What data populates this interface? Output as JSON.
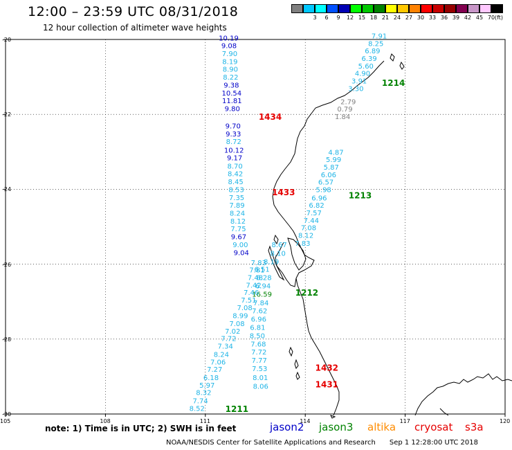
{
  "header": {
    "title": "12:00 – 23:59 UTC 08/31/2018",
    "subtitle": "12 hour collection of altimeter wave heights"
  },
  "colorbar": {
    "unit": "(ft)",
    "swatches": [
      {
        "label": "",
        "color": "#808080"
      },
      {
        "label": "3",
        "color": "#00c8ff"
      },
      {
        "label": "6",
        "color": "#00ffff"
      },
      {
        "label": "9",
        "color": "#0050ff"
      },
      {
        "label": "12",
        "color": "#0000b4"
      },
      {
        "label": "15",
        "color": "#00ff00"
      },
      {
        "label": "18",
        "color": "#00c800"
      },
      {
        "label": "21",
        "color": "#008200"
      },
      {
        "label": "24",
        "color": "#ffff00"
      },
      {
        "label": "27",
        "color": "#ffc800"
      },
      {
        "label": "30",
        "color": "#ff8200"
      },
      {
        "label": "33",
        "color": "#ff0000"
      },
      {
        "label": "36",
        "color": "#c80000"
      },
      {
        "label": "39",
        "color": "#960000"
      },
      {
        "label": "42",
        "color": "#820050"
      },
      {
        "label": "45",
        "color": "#c896c8"
      },
      {
        "label": "70",
        "color": "#ffc8ff"
      },
      {
        "label": "",
        "color": "#000000"
      }
    ]
  },
  "axes": {
    "lat_labels": [
      "-20",
      "-22",
      "-24",
      "-26",
      "-28",
      "-30"
    ],
    "lon_labels": [
      "105",
      "108",
      "111",
      "114",
      "117",
      "120"
    ],
    "lat_range": [
      -30,
      -20
    ],
    "lon_range": [
      105,
      120
    ]
  },
  "colors": {
    "light_blue": "#1eb4e6",
    "dark_blue": "#0000c8",
    "gray": "#808080",
    "green": "#008200",
    "red": "#e60000",
    "orange": "#ff8c00",
    "yellow_green": "#96c800"
  },
  "tracks": [
    {
      "id": "1434",
      "label_color": "#e60000",
      "label_lon": 112.6,
      "label_lat": -22.05,
      "points": [
        {
          "lon": 111.7,
          "lat": -19.95,
          "v": "10.19",
          "c": "#0000c8"
        },
        {
          "lon": 111.71,
          "lat": -20.16,
          "v": "9.08",
          "c": "#0000c8"
        },
        {
          "lon": 111.73,
          "lat": -20.37,
          "v": "7.90",
          "c": "#1eb4e6"
        },
        {
          "lon": 111.74,
          "lat": -20.58,
          "v": "8.19",
          "c": "#1eb4e6"
        },
        {
          "lon": 111.75,
          "lat": -20.79,
          "v": "8.90",
          "c": "#1eb4e6"
        },
        {
          "lon": 111.76,
          "lat": -21.0,
          "v": "8.22",
          "c": "#1eb4e6"
        },
        {
          "lon": 111.78,
          "lat": -21.21,
          "v": "9.38",
          "c": "#0000c8"
        },
        {
          "lon": 111.79,
          "lat": -21.42,
          "v": "10.54",
          "c": "#0000c8"
        },
        {
          "lon": 111.8,
          "lat": -21.63,
          "v": "11.81",
          "c": "#0000c8"
        },
        {
          "lon": 111.81,
          "lat": -21.84,
          "v": "9.80",
          "c": "#0000c8"
        },
        {
          "lon": 111.83,
          "lat": -22.3,
          "v": "9.70",
          "c": "#0000c8"
        },
        {
          "lon": 111.84,
          "lat": -22.51,
          "v": "9.33",
          "c": "#0000c8"
        },
        {
          "lon": 111.85,
          "lat": -22.72,
          "v": "8.72",
          "c": "#1eb4e6"
        },
        {
          "lon": 111.86,
          "lat": -22.95,
          "v": "10.12",
          "c": "#0000c8"
        },
        {
          "lon": 111.88,
          "lat": -23.15,
          "v": "9.17",
          "c": "#0000c8"
        },
        {
          "lon": 111.89,
          "lat": -23.37,
          "v": "8.70",
          "c": "#1eb4e6"
        },
        {
          "lon": 111.9,
          "lat": -23.58,
          "v": "8.42",
          "c": "#1eb4e6"
        },
        {
          "lon": 111.91,
          "lat": -23.79,
          "v": "8.45",
          "c": "#1eb4e6"
        },
        {
          "lon": 111.93,
          "lat": -24.0,
          "v": "8.53",
          "c": "#1eb4e6"
        },
        {
          "lon": 111.94,
          "lat": -24.21,
          "v": "7.35",
          "c": "#1eb4e6"
        },
        {
          "lon": 111.95,
          "lat": -24.42,
          "v": "7.89",
          "c": "#1eb4e6"
        },
        {
          "lon": 111.96,
          "lat": -24.63,
          "v": "8.24",
          "c": "#1eb4e6"
        },
        {
          "lon": 111.98,
          "lat": -24.84,
          "v": "8.12",
          "c": "#1eb4e6"
        },
        {
          "lon": 111.99,
          "lat": -25.05,
          "v": "7.75",
          "c": "#1eb4e6"
        },
        {
          "lon": 112.0,
          "lat": -25.26,
          "v": "9.67",
          "c": "#0000c8"
        },
        {
          "lon": 112.05,
          "lat": -25.47,
          "v": "9.00",
          "c": "#1eb4e6"
        },
        {
          "lon": 112.08,
          "lat": -25.68,
          "v": "9.04",
          "c": "#0000c8"
        }
      ]
    },
    {
      "id": "1433",
      "label_color": "#e60000",
      "label_lon": 113.0,
      "label_lat": -24.07,
      "points": [
        {
          "lon": 113.22,
          "lat": -25.47,
          "v": "8.67",
          "c": "#1eb4e6"
        },
        {
          "lon": 113.18,
          "lat": -25.7,
          "v": "8.10",
          "c": "#1eb4e6"
        },
        {
          "lon": 112.98,
          "lat": -25.92,
          "v": "8.19",
          "c": "#1eb4e6"
        },
        {
          "lon": 112.7,
          "lat": -26.13,
          "v": "6.51",
          "c": "#1eb4e6"
        },
        {
          "lon": 112.76,
          "lat": -26.35,
          "v": "6.28",
          "c": "#1eb4e6"
        },
        {
          "lon": 112.73,
          "lat": -26.57,
          "v": "6.94",
          "c": "#1eb4e6"
        },
        {
          "lon": 112.7,
          "lat": -26.79,
          "v": "16.59",
          "c": "#008200"
        },
        {
          "lon": 112.67,
          "lat": -27.02,
          "v": "7.84",
          "c": "#1eb4e6"
        },
        {
          "lon": 112.63,
          "lat": -27.24,
          "v": "7.62",
          "c": "#1eb4e6"
        },
        {
          "lon": 112.6,
          "lat": -27.46,
          "v": "6.96",
          "c": "#1eb4e6"
        },
        {
          "lon": 112.57,
          "lat": -27.68,
          "v": "6.81",
          "c": "#1eb4e6"
        },
        {
          "lon": 112.56,
          "lat": -27.9,
          "v": "8.50",
          "c": "#1eb4e6"
        },
        {
          "lon": 112.59,
          "lat": -28.12,
          "v": "7.68",
          "c": "#1eb4e6"
        },
        {
          "lon": 112.61,
          "lat": -28.34,
          "v": "7.72",
          "c": "#1eb4e6"
        },
        {
          "lon": 112.62,
          "lat": -28.56,
          "v": "7.77",
          "c": "#1eb4e6"
        },
        {
          "lon": 112.63,
          "lat": -28.78,
          "v": "7.53",
          "c": "#1eb4e6"
        },
        {
          "lon": 112.65,
          "lat": -29.02,
          "v": "8.01",
          "c": "#1eb4e6"
        },
        {
          "lon": 112.66,
          "lat": -29.25,
          "v": "8.06",
          "c": "#1eb4e6"
        }
      ]
    },
    {
      "id": "1432",
      "label_color": "#e60000",
      "label_lon": 114.3,
      "label_lat": -28.75,
      "points": []
    },
    {
      "id": "1431",
      "label_color": "#e60000",
      "label_lon": 114.3,
      "label_lat": -29.2,
      "points": []
    },
    {
      "id": "1214",
      "label_color": "#008200",
      "label_lon": 116.3,
      "label_lat": -21.15,
      "points": [
        {
          "lon": 116.22,
          "lat": -19.9,
          "v": "7.91",
          "c": "#1eb4e6"
        },
        {
          "lon": 116.12,
          "lat": -20.1,
          "v": "8.25",
          "c": "#1eb4e6"
        },
        {
          "lon": 116.02,
          "lat": -20.3,
          "v": "6.89",
          "c": "#1eb4e6"
        },
        {
          "lon": 115.92,
          "lat": -20.5,
          "v": "6.39",
          "c": "#1eb4e6"
        },
        {
          "lon": 115.82,
          "lat": -20.7,
          "v": "5.60",
          "c": "#1eb4e6"
        },
        {
          "lon": 115.72,
          "lat": -20.9,
          "v": "4.90",
          "c": "#1eb4e6"
        },
        {
          "lon": 115.62,
          "lat": -21.1,
          "v": "3.91",
          "c": "#1eb4e6"
        },
        {
          "lon": 115.52,
          "lat": -21.3,
          "v": "3.30",
          "c": "#1eb4e6"
        },
        {
          "lon": 115.29,
          "lat": -21.65,
          "v": "2.79",
          "c": "#808080"
        },
        {
          "lon": 115.19,
          "lat": -21.85,
          "v": "0.79",
          "c": "#808080"
        },
        {
          "lon": 115.12,
          "lat": -22.05,
          "v": "1.84",
          "c": "#808080"
        }
      ]
    },
    {
      "id": "1213",
      "label_color": "#008200",
      "label_lon": 115.3,
      "label_lat": -24.15,
      "points": [
        {
          "lon": 114.92,
          "lat": -23.0,
          "v": "4.87",
          "c": "#1eb4e6"
        },
        {
          "lon": 114.85,
          "lat": -23.2,
          "v": "5.99",
          "c": "#1eb4e6"
        },
        {
          "lon": 114.78,
          "lat": -23.4,
          "v": "5.87",
          "c": "#1eb4e6"
        },
        {
          "lon": 114.7,
          "lat": -23.6,
          "v": "6.06",
          "c": "#1eb4e6"
        },
        {
          "lon": 114.62,
          "lat": -23.8,
          "v": "6.57",
          "c": "#1eb4e6"
        },
        {
          "lon": 114.55,
          "lat": -24.0,
          "v": "5.98",
          "c": "#1eb4e6"
        },
        {
          "lon": 114.42,
          "lat": -24.22,
          "v": "6.96",
          "c": "#1eb4e6"
        },
        {
          "lon": 114.34,
          "lat": -24.42,
          "v": "6.82",
          "c": "#1eb4e6"
        },
        {
          "lon": 114.26,
          "lat": -24.62,
          "v": "7.57",
          "c": "#1eb4e6"
        },
        {
          "lon": 114.18,
          "lat": -24.82,
          "v": "7.44",
          "c": "#1eb4e6"
        },
        {
          "lon": 114.1,
          "lat": -25.02,
          "v": "7.08",
          "c": "#1eb4e6"
        },
        {
          "lon": 114.02,
          "lat": -25.22,
          "v": "8.12",
          "c": "#1eb4e6"
        },
        {
          "lon": 113.92,
          "lat": -25.43,
          "v": "7.83",
          "c": "#1eb4e6"
        }
      ]
    },
    {
      "id": "1212",
      "label_color": "#008200",
      "label_lon": 113.7,
      "label_lat": -26.75,
      "points": [
        {
          "lon": 112.6,
          "lat": -25.95,
          "v": "7.83",
          "c": "#1eb4e6"
        },
        {
          "lon": 112.55,
          "lat": -26.15,
          "v": "7.81",
          "c": "#1eb4e6"
        },
        {
          "lon": 112.5,
          "lat": -26.35,
          "v": "7.48",
          "c": "#1eb4e6"
        },
        {
          "lon": 112.45,
          "lat": -26.55,
          "v": "7.42",
          "c": "#1eb4e6"
        },
        {
          "lon": 112.38,
          "lat": -26.75,
          "v": "7.46",
          "c": "#1eb4e6"
        },
        {
          "lon": 112.3,
          "lat": -26.95,
          "v": "7.51",
          "c": "#1eb4e6"
        },
        {
          "lon": 112.18,
          "lat": -27.15,
          "v": "7.08",
          "c": "#1eb4e6"
        },
        {
          "lon": 112.05,
          "lat": -27.37,
          "v": "8.99",
          "c": "#1eb4e6"
        },
        {
          "lon": 111.95,
          "lat": -27.58,
          "v": "7.08",
          "c": "#1eb4e6"
        },
        {
          "lon": 111.82,
          "lat": -27.78,
          "v": "7.02",
          "c": "#1eb4e6"
        },
        {
          "lon": 111.7,
          "lat": -27.98,
          "v": "7.72",
          "c": "#1eb4e6"
        },
        {
          "lon": 111.6,
          "lat": -28.18,
          "v": "7.34",
          "c": "#1eb4e6"
        },
        {
          "lon": 111.48,
          "lat": -28.4,
          "v": "8.24",
          "c": "#1eb4e6"
        },
        {
          "lon": 111.38,
          "lat": -28.6,
          "v": "7.06",
          "c": "#1eb4e6"
        },
        {
          "lon": 111.28,
          "lat": -28.8,
          "v": "7.27",
          "c": "#1eb4e6"
        },
        {
          "lon": 111.17,
          "lat": -29.02,
          "v": "6.18",
          "c": "#1eb4e6"
        },
        {
          "lon": 111.05,
          "lat": -29.22,
          "v": "5.97",
          "c": "#1eb4e6"
        },
        {
          "lon": 110.95,
          "lat": -29.42,
          "v": "8.32",
          "c": "#1eb4e6"
        },
        {
          "lon": 110.85,
          "lat": -29.64,
          "v": "7.74",
          "c": "#1eb4e6"
        },
        {
          "lon": 110.75,
          "lat": -29.84,
          "v": "8.52",
          "c": "#1eb4e6"
        }
      ]
    },
    {
      "id": "1211",
      "label_color": "#008200",
      "label_lon": 111.6,
      "label_lat": -29.85,
      "points": []
    }
  ],
  "footer": {
    "note": "note: 1) Time is in UTC; 2) SWH is in feet",
    "legend": [
      {
        "label": "jason2",
        "color": "#0000c8"
      },
      {
        "label": "jason3",
        "color": "#008200"
      },
      {
        "label": "altika",
        "color": "#ff8c00"
      },
      {
        "label": "cryosat",
        "color": "#e60000"
      },
      {
        "label": "s3a",
        "color": "#e60000"
      }
    ],
    "agency": "NOAA/NESDIS Center for Satellite Applications and Research",
    "timestamp": "Sep  1 12:28:00 UTC 2018"
  }
}
